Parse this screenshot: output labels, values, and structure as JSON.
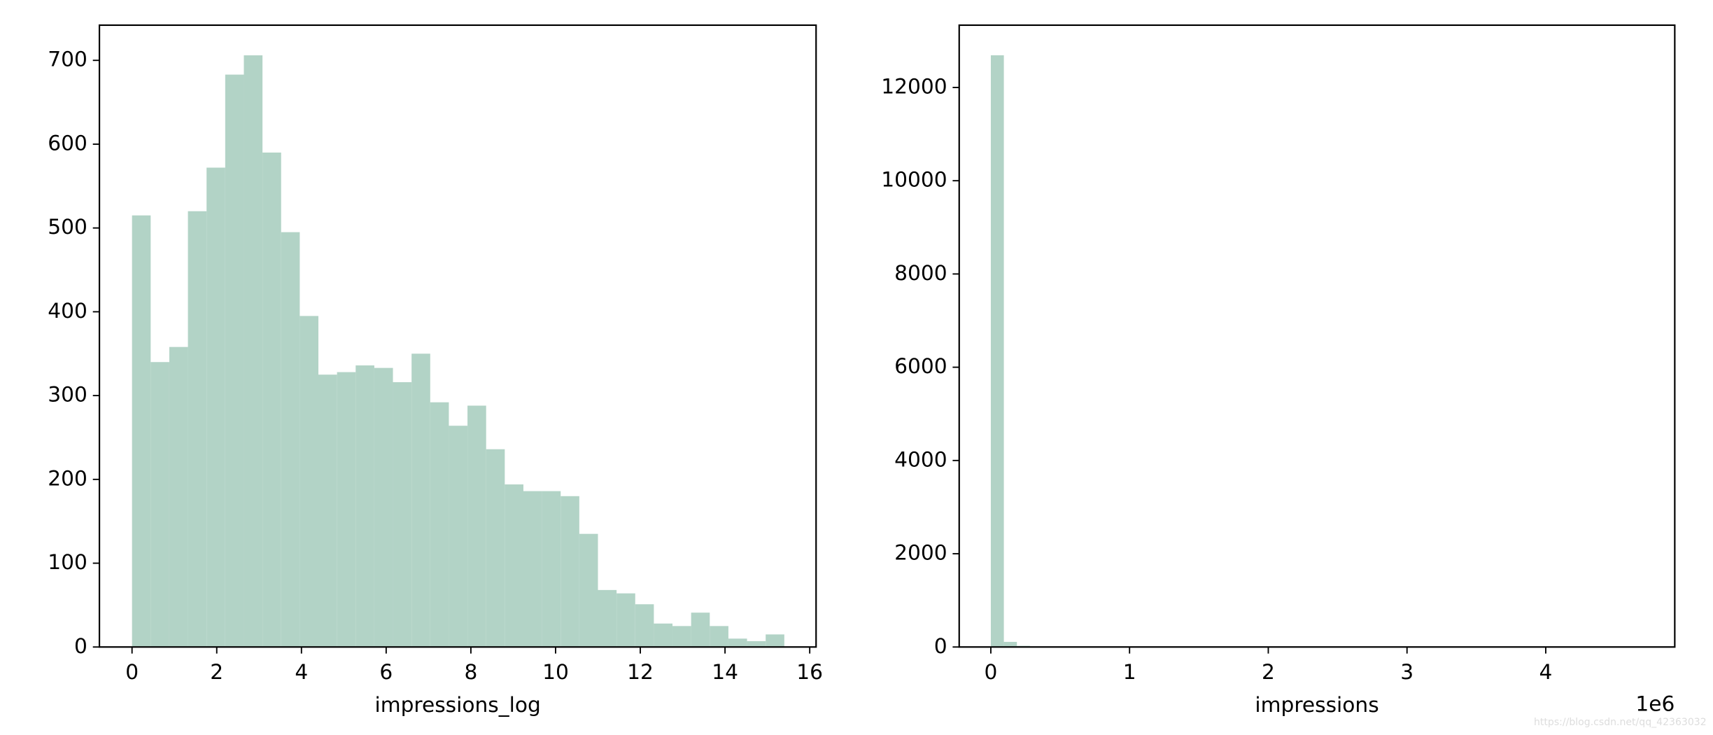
{
  "chart_data": [
    {
      "type": "histogram",
      "xlabel": "impressions_log",
      "color": "#b2d3c6",
      "bins": [
        0,
        0.44,
        0.88,
        1.32,
        1.76,
        2.2,
        2.64,
        3.08,
        3.52,
        3.96,
        4.4,
        4.84,
        5.28,
        5.72,
        6.16,
        6.6,
        7.04,
        7.48,
        7.92,
        8.36,
        8.8,
        9.24,
        9.68,
        10.12,
        10.56,
        11,
        11.44,
        11.88,
        12.32,
        12.76,
        13.2,
        13.64,
        14.08,
        14.52,
        14.96,
        15.4
      ],
      "values": [
        515,
        340,
        358,
        520,
        572,
        683,
        706,
        590,
        495,
        395,
        325,
        328,
        336,
        333,
        316,
        350,
        292,
        264,
        288,
        236,
        194,
        186,
        186,
        180,
        135,
        68,
        64,
        51,
        28,
        25,
        41,
        25,
        10,
        7,
        15
      ],
      "xlim": [
        -0.77,
        16.15
      ],
      "xticks": [
        0,
        2,
        4,
        6,
        8,
        10,
        12,
        14,
        16
      ],
      "ylim": [
        0,
        742
      ],
      "yticks": [
        0,
        100,
        200,
        300,
        400,
        500,
        600,
        700
      ]
    },
    {
      "type": "histogram",
      "xlabel": "impressions",
      "offset_label": "1e6",
      "color": "#b2d3c6",
      "bins": [
        0,
        94000,
        188000,
        282000,
        376000,
        470000,
        564000,
        658000,
        752000,
        846000,
        940000,
        1034000,
        1128000,
        1222000,
        1316000,
        1410000,
        1504000,
        1598000,
        1692000,
        1786000,
        1880000,
        1974000,
        2068000,
        2162000,
        2256000,
        2350000,
        2444000,
        2538000,
        2632000,
        2726000,
        2820000,
        2914000,
        3008000,
        3102000,
        3196000,
        3290000,
        3384000,
        3478000,
        3572000,
        3666000,
        3760000,
        3854000,
        3948000,
        4042000,
        4136000,
        4230000,
        4324000,
        4418000,
        4512000,
        4606000,
        4700000
      ],
      "values": [
        12690,
        110,
        25,
        10,
        6,
        4,
        3,
        2,
        2,
        1,
        1,
        1,
        0,
        1,
        0,
        0,
        1,
        0,
        0,
        0,
        0,
        0,
        1,
        0,
        0,
        0,
        0,
        0,
        0,
        0,
        0,
        0,
        0,
        0,
        0,
        0,
        0,
        0,
        0,
        0,
        0,
        0,
        0,
        0,
        0,
        0,
        0,
        0,
        0,
        1
      ],
      "xlim": [
        -228000,
        4930000
      ],
      "xticks": [
        {
          "value": 0,
          "label": "0"
        },
        {
          "value": 1000000,
          "label": "1"
        },
        {
          "value": 2000000,
          "label": "2"
        },
        {
          "value": 3000000,
          "label": "3"
        },
        {
          "value": 4000000,
          "label": "4"
        }
      ],
      "ylim": [
        0,
        13336
      ],
      "yticks": [
        0,
        2000,
        4000,
        6000,
        8000,
        10000,
        12000
      ]
    }
  ],
  "watermark": "https://blog.csdn.net/qq_42363032"
}
